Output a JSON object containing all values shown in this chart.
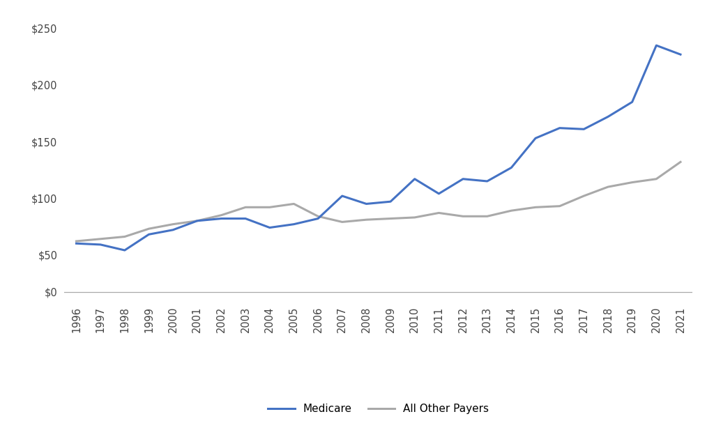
{
  "years": [
    1996,
    1997,
    1998,
    1999,
    2000,
    2001,
    2002,
    2003,
    2004,
    2005,
    2006,
    2007,
    2008,
    2009,
    2010,
    2011,
    2012,
    2013,
    2014,
    2015,
    2016,
    2017,
    2018,
    2019,
    2020,
    2021
  ],
  "medicare": [
    60,
    59,
    54,
    68,
    72,
    80,
    82,
    82,
    74,
    77,
    82,
    102,
    95,
    97,
    117,
    104,
    117,
    115,
    127,
    153,
    162,
    161,
    172,
    185,
    235,
    227
  ],
  "all_other_payers": [
    62,
    64,
    66,
    73,
    77,
    80,
    85,
    92,
    92,
    95,
    84,
    79,
    81,
    82,
    83,
    87,
    84,
    84,
    89,
    92,
    93,
    102,
    110,
    114,
    117,
    132
  ],
  "medicare_color": "#4472C4",
  "other_payers_color": "#A9A9A9",
  "medicare_label": "Medicare",
  "other_payers_label": "All Other Payers",
  "upper_yticks": [
    50,
    100,
    150,
    200,
    250
  ],
  "upper_ytick_labels": [
    "$50",
    "$100",
    "$150",
    "$200",
    "$250"
  ],
  "lower_ytick_labels": [
    "$0"
  ],
  "line_width": 2.2,
  "background_color": "#FFFFFF",
  "legend_fontsize": 11,
  "tick_fontsize": 10.5,
  "upper_ylim": [
    40,
    260
  ],
  "lower_ylim": [
    -5,
    10
  ]
}
